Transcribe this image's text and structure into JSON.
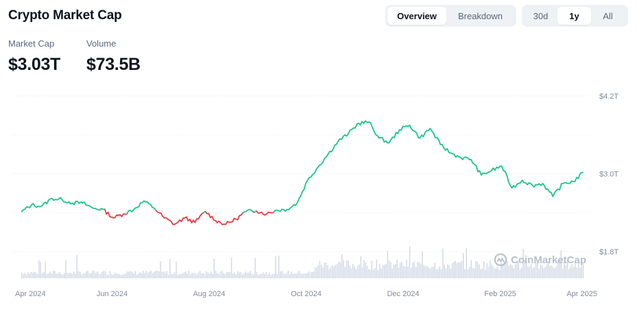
{
  "header": {
    "title": "Crypto Market Cap",
    "view_tabs": [
      "Overview",
      "Breakdown"
    ],
    "active_view": "Overview",
    "range_tabs": [
      "30d",
      "1y",
      "All"
    ],
    "active_range": "1y"
  },
  "stats": {
    "market_cap_label": "Market Cap",
    "market_cap_value": "$3.03T",
    "volume_label": "Volume",
    "volume_value": "$73.5B"
  },
  "watermark": "CoinMarketCap",
  "colors": {
    "up": "#16c784",
    "down": "#ea3943",
    "volume": "#cfd6e4",
    "grid": "#e6e9ee"
  },
  "chart_data": {
    "type": "line",
    "ylabel_position": "right",
    "y_ticks": [
      "$4.2T",
      "$3.0T",
      "$1.8T"
    ],
    "y_tick_values": [
      4.2,
      3.0,
      1.8
    ],
    "ylim": [
      1.65,
      4.35
    ],
    "x_ticks": [
      "Apr 2024",
      "Jun 2024",
      "Aug 2024",
      "Oct 2024",
      "Dec 2024",
      "Feb 2025",
      "Apr 2025"
    ],
    "x_tick_index": [
      0,
      8.7,
      17.4,
      26.1,
      34.8,
      43.5,
      52.2
    ],
    "baseline": 2.41,
    "grid": "horizontal-dotted",
    "series": [
      {
        "unit": "T USD",
        "values": [
          2.41,
          2.52,
          2.5,
          2.62,
          2.6,
          2.55,
          2.55,
          2.47,
          2.45,
          2.32,
          2.38,
          2.45,
          2.58,
          2.47,
          2.32,
          2.22,
          2.32,
          2.25,
          2.42,
          2.28,
          2.22,
          2.3,
          2.42,
          2.43,
          2.38,
          2.44,
          2.45,
          2.55,
          2.9,
          3.1,
          3.3,
          3.5,
          3.62,
          3.78,
          3.8,
          3.55,
          3.48,
          3.68,
          3.75,
          3.55,
          3.7,
          3.45,
          3.32,
          3.25,
          3.22,
          2.98,
          3.05,
          3.12,
          2.78,
          2.9,
          2.82,
          2.85,
          2.65,
          2.85,
          2.88,
          3.02
        ]
      }
    ],
    "volume_bars": "unlabeled relative daily volume, higher from Oct 2024 onward"
  }
}
